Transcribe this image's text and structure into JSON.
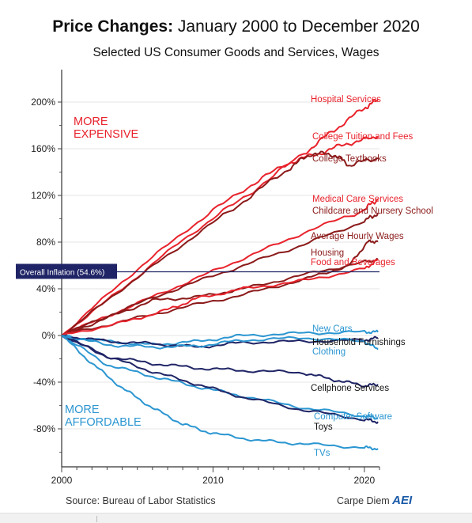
{
  "title": {
    "bold": "Price Changes:",
    "rest": "January 2000 to December 2020"
  },
  "subtitle": "Selected US Consumer Goods and Services, Wages",
  "source": "Source: Bureau of Labor Statistics",
  "brand": {
    "text": "Carpe Diem",
    "logo": "AEI"
  },
  "annotations": {
    "more_expensive": [
      "MORE",
      "EXPENSIVE"
    ],
    "more_affordable": [
      "MORE",
      "AFFORDABLE"
    ]
  },
  "colors": {
    "red": "#e8232c",
    "darkred": "#8b1a1a",
    "navy": "#1f2466",
    "lightblue": "#2b96d1",
    "inflation_box": "#1f2466"
  },
  "chart_data": {
    "type": "line",
    "xlabel": "",
    "ylabel": "",
    "xlim": [
      2000,
      2021
    ],
    "ylim": [
      -110,
      210
    ],
    "x_ticks": [
      2000,
      2010,
      2020
    ],
    "y_ticks": [
      {
        "value": 200,
        "label": "200%"
      },
      {
        "value": 160,
        "label": "160%"
      },
      {
        "value": 120,
        "label": "120%"
      },
      {
        "value": 80,
        "label": "80%"
      },
      {
        "value": 40,
        "label": "40%"
      },
      {
        "value": 0,
        "label": "0%"
      },
      {
        "value": -40,
        "label": "-40%"
      },
      {
        "value": -80,
        "label": "-80%"
      }
    ],
    "reference_line": {
      "label": "Overall Inflation (54.6%)",
      "value": 54.6
    },
    "series": [
      {
        "name": "Hospital Services",
        "color": "#e8232c",
        "x": [
          2000,
          2004,
          2008,
          2012,
          2016,
          2018,
          2020,
          2020.9
        ],
        "values": [
          0,
          40,
          82,
          118,
          156,
          176,
          195,
          202
        ]
      },
      {
        "name": "College Tuition and Fees",
        "color": "#e8232c",
        "x": [
          2000,
          2004,
          2008,
          2012,
          2015,
          2017,
          2019,
          2020.9
        ],
        "values": [
          0,
          46,
          88,
          125,
          148,
          156,
          165,
          170
        ]
      },
      {
        "name": "College Textbooks",
        "color": "#8b1a1a",
        "x": [
          2000,
          2004,
          2008,
          2012,
          2015,
          2016.5,
          2018,
          2019,
          2020.9
        ],
        "values": [
          0,
          40,
          78,
          115,
          143,
          156,
          155,
          146,
          152
        ]
      },
      {
        "name": "Medical Care Services",
        "color": "#e8232c",
        "x": [
          2000,
          2004,
          2008,
          2012,
          2016,
          2020,
          2020.9
        ],
        "values": [
          0,
          22,
          44,
          66,
          88,
          108,
          117
        ]
      },
      {
        "name": "Childcare and Nursery School",
        "color": "#8b1a1a",
        "x": [
          2000,
          2004,
          2008,
          2012,
          2016,
          2020,
          2020.9
        ],
        "values": [
          0,
          22,
          42,
          60,
          78,
          98,
          105
        ]
      },
      {
        "name": "Average Hourly Wages",
        "color": "#8b1a1a",
        "x": [
          2000,
          2004,
          2008,
          2012,
          2016,
          2019,
          2020.2,
          2020.9
        ],
        "values": [
          0,
          12,
          24,
          35,
          48,
          60,
          80,
          81
        ]
      },
      {
        "name": "Housing",
        "color": "#8b1a1a",
        "x": [
          2000,
          2003,
          2006,
          2009,
          2012,
          2016,
          2020,
          2020.9
        ],
        "values": [
          0,
          15,
          30,
          33,
          40,
          52,
          63,
          65
        ]
      },
      {
        "name": "Food and Beverages",
        "color": "#e8232c",
        "x": [
          2000,
          2004,
          2007,
          2009,
          2012,
          2016,
          2020,
          2020.9
        ],
        "values": [
          0,
          11,
          22,
          32,
          40,
          47,
          57,
          65
        ]
      },
      {
        "name": "New Cars",
        "color": "#2b96d1",
        "x": [
          2000,
          2003,
          2006,
          2009,
          2012,
          2016,
          2020,
          2020.9
        ],
        "values": [
          0,
          -5,
          -8,
          -5,
          0,
          2,
          3,
          3
        ]
      },
      {
        "name": "Household Furnishings",
        "color": "#1f2466",
        "x": [
          2000,
          2003,
          2006,
          2009,
          2012,
          2016,
          2020,
          2020.9
        ],
        "values": [
          0,
          -5,
          -7,
          -10,
          -6,
          -5,
          -4,
          -2
        ]
      },
      {
        "name": "Clothing",
        "color": "#2b96d1",
        "x": [
          2000,
          2003,
          2006,
          2009,
          2012,
          2016,
          2020,
          2020.9
        ],
        "values": [
          0,
          -8,
          -10,
          -9,
          -4,
          -2,
          -5,
          -12
        ]
      },
      {
        "name": "Cellphone Services",
        "color": "#1f2466",
        "x": [
          2000,
          2003,
          2006,
          2009,
          2012,
          2016,
          2018,
          2020,
          2020.9
        ],
        "values": [
          0,
          -18,
          -24,
          -28,
          -30,
          -32,
          -38,
          -43,
          -42
        ]
      },
      {
        "name": "Computer Software",
        "color": "#2b96d1",
        "x": [
          2000,
          2003,
          2006,
          2009,
          2012,
          2016,
          2020,
          2020.9
        ],
        "values": [
          0,
          -25,
          -35,
          -44,
          -52,
          -62,
          -69,
          -71
        ]
      },
      {
        "name": "Toys",
        "color": "#1f2466",
        "x": [
          2000,
          2003,
          2006,
          2009,
          2012,
          2016,
          2020,
          2020.9
        ],
        "values": [
          0,
          -18,
          -31,
          -42,
          -53,
          -64,
          -72,
          -74
        ]
      },
      {
        "name": "TVs",
        "color": "#2b96d1",
        "x": [
          2000,
          2002,
          2004,
          2006,
          2008,
          2010,
          2013,
          2016,
          2020,
          2020.9
        ],
        "values": [
          0,
          -24,
          -45,
          -62,
          -76,
          -84,
          -90,
          -93,
          -96,
          -97
        ]
      }
    ]
  }
}
